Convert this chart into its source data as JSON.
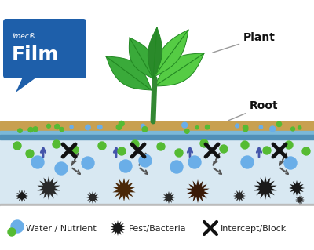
{
  "fig_width": 4.0,
  "fig_height": 3.19,
  "dpi": 100,
  "bg_color": "#ffffff",
  "soil_bg_color": "#d8e8f2",
  "film_top_color": "#7ab8d8",
  "film_bot_color": "#5090b8",
  "root_layer_color": "#c8a050",
  "plant_label": "Plant",
  "root_label": "Root",
  "imec_line1": "imec®",
  "imec_line2": "Film",
  "bubble_color": "#1e5faa",
  "water_color": "#6aaee8",
  "nutrient_color": "#55bb33",
  "pest_dark": "#1a1a1a",
  "pest_brown": "#5a3010",
  "arrow_color": "#4455aa",
  "intercept_color": "#111111",
  "dashed_color": "#555555",
  "legend_water_label": "Water / Nutrient",
  "legend_pest_label": "Pest/Bacteria",
  "legend_intercept_label": "Intercept/Block",
  "border_color": "#bbbbbb",
  "stem_color": "#338833",
  "leaf_dark": "#2a8a2a",
  "leaf_mid": "#3aaa3a",
  "leaf_light": "#55cc44"
}
